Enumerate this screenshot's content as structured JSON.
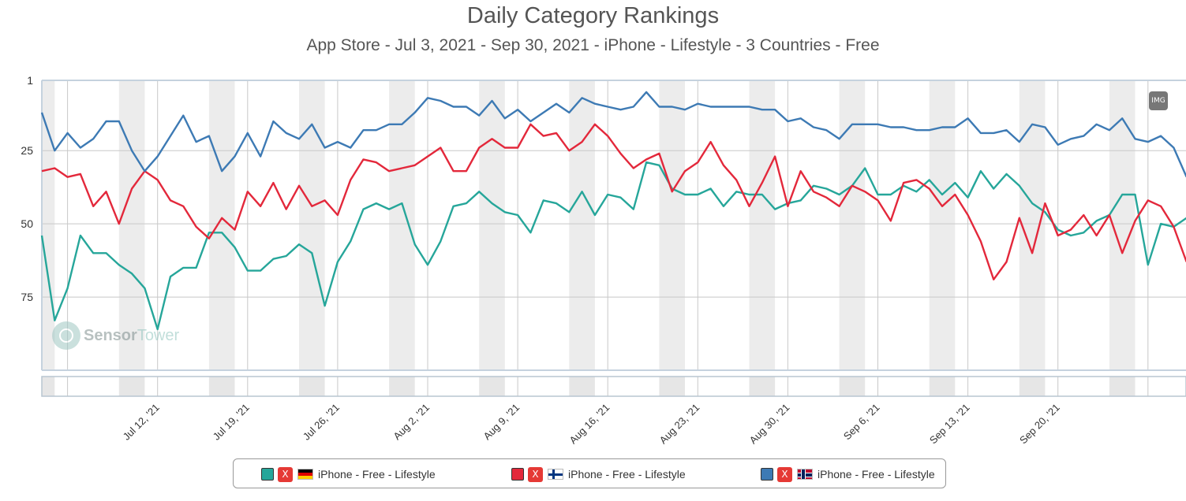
{
  "chart_data": {
    "type": "line",
    "title": "Daily Category Rankings",
    "subtitle": "App Store - Jul 3, 2021 - Sep 30, 2021 - iPhone - Lifestyle - 3 Countries - Free",
    "x_start": "Jul 3, 2021",
    "x_tick_labels": [
      "Jul 12, '21",
      "Jul 19, '21",
      "Jul 26, '21",
      "Aug 2, '21",
      "Aug 9, '21",
      "Aug 16, '21",
      "Aug 23, '21",
      "Aug 30, '21",
      "Sep 6, '21",
      "Sep 13, '21",
      "Sep 20, '21"
    ],
    "y_tick_labels": [
      "1",
      "25",
      "50",
      "75"
    ],
    "y_reversed": true,
    "ylim": [
      1,
      100
    ],
    "grid": true,
    "series": [
      {
        "name": "iPhone - Free - Lifestyle",
        "country_flag": "Germany",
        "color": "#26a69a",
        "values": [
          54,
          83,
          72,
          54,
          60,
          60,
          64,
          67,
          72,
          86,
          68,
          65,
          65,
          53,
          53,
          58,
          66,
          66,
          62,
          61,
          57,
          60,
          78,
          63,
          56,
          45,
          43,
          45,
          43,
          57,
          64,
          56,
          44,
          43,
          39,
          43,
          46,
          47,
          53,
          42,
          43,
          46,
          39,
          47,
          40,
          41,
          45,
          29,
          30,
          38,
          40,
          40,
          38,
          44,
          39,
          40,
          40,
          45,
          43,
          42,
          37,
          38,
          40,
          37,
          31,
          40,
          40,
          37,
          39,
          35,
          40,
          36,
          41,
          32,
          38,
          33,
          37,
          43,
          46,
          52,
          54,
          53,
          49,
          47,
          40,
          40,
          64,
          50,
          51,
          48
        ]
      },
      {
        "name": "iPhone - Free - Lifestyle",
        "country_flag": "Finland",
        "color": "#e3283b",
        "values": [
          32,
          31,
          34,
          33,
          44,
          39,
          50,
          38,
          32,
          35,
          42,
          44,
          51,
          55,
          48,
          52,
          39,
          44,
          36,
          45,
          37,
          44,
          42,
          47,
          35,
          28,
          29,
          32,
          31,
          30,
          27,
          24,
          32,
          32,
          24,
          21,
          24,
          24,
          16,
          20,
          19,
          25,
          22,
          16,
          20,
          26,
          31,
          28,
          26,
          39,
          32,
          29,
          22,
          30,
          35,
          44,
          36,
          27,
          44,
          32,
          39,
          41,
          44,
          37,
          39,
          42,
          49,
          36,
          35,
          38,
          44,
          40,
          47,
          56,
          69,
          63,
          48,
          60,
          43,
          54,
          52,
          47,
          54,
          47,
          60,
          49,
          42,
          44,
          51,
          63
        ]
      },
      {
        "name": "iPhone - Free - Lifestyle",
        "country_flag": "Norway",
        "color": "#3d7ab4",
        "values": [
          12,
          25,
          19,
          24,
          21,
          15,
          15,
          25,
          32,
          27,
          20,
          13,
          22,
          20,
          32,
          27,
          19,
          27,
          15,
          19,
          21,
          16,
          24,
          22,
          24,
          18,
          18,
          16,
          16,
          12,
          7,
          8,
          10,
          10,
          13,
          8,
          14,
          11,
          15,
          12,
          9,
          12,
          7,
          9,
          10,
          11,
          10,
          5,
          10,
          10,
          11,
          9,
          10,
          10,
          10,
          10,
          11,
          11,
          15,
          14,
          17,
          18,
          21,
          16,
          16,
          16,
          17,
          17,
          18,
          18,
          17,
          17,
          14,
          19,
          19,
          18,
          22,
          16,
          17,
          23,
          21,
          20,
          16,
          18,
          14,
          21,
          22,
          20,
          24,
          34
        ]
      }
    ]
  },
  "img_button_label": "IMG",
  "watermark": {
    "brand_a": "Sensor",
    "brand_b": "Tower"
  },
  "legend": {
    "close_label": "X"
  }
}
